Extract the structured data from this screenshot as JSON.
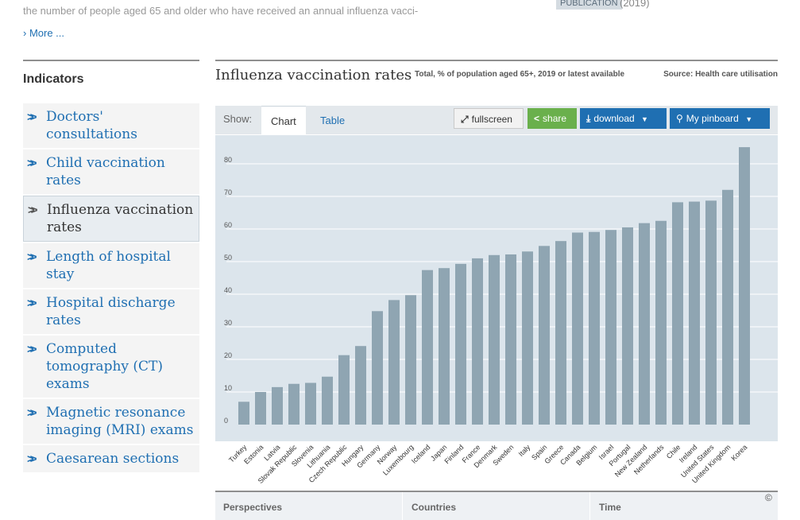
{
  "intro": {
    "text": "the number of people aged 65 and older who have received an annual influenza vacci-",
    "more_link": "› More ...",
    "badge": "PUBLICATION",
    "year": "(2019)"
  },
  "sidebar": {
    "title": "Indicators",
    "items": [
      {
        "label": "Doctors' consultations",
        "active": false
      },
      {
        "label": "Child vaccination rates",
        "active": false
      },
      {
        "label": "Influenza vaccination rates",
        "active": true
      },
      {
        "label": "Length of hospital stay",
        "active": false
      },
      {
        "label": "Hospital discharge rates",
        "active": false
      },
      {
        "label": "Computed tomography (CT) exams",
        "active": false
      },
      {
        "label": "Magnetic resonance imaging (MRI) exams",
        "active": false
      },
      {
        "label": "Caesarean sections",
        "active": false
      }
    ]
  },
  "main": {
    "title": "Influenza vaccination rates",
    "subtitle": "Total, % of population aged 65+, 2019 or latest available",
    "source": "Source: Health care utilisation"
  },
  "toolbar": {
    "show_label": "Show:",
    "tab_chart": "Chart",
    "tab_table": "Table",
    "fullscreen": "fullscreen",
    "share": "share",
    "download": "download",
    "pinboard": "My pinboard",
    "caret": "▼"
  },
  "icons": {
    "fullscreen": "expand-icon",
    "share": "share-icon",
    "download": "download-icon",
    "pinboard": "pin-icon",
    "indicator": "double-chevron-icon"
  },
  "colors": {
    "accent": "#1f6fb2",
    "share": "#6ab04c",
    "bar": "#8fa5b2",
    "chart_bg": "#dce5ec"
  },
  "bottom": {
    "perspectives": "Perspectives",
    "countries": "Countries",
    "time": "Time",
    "copyright": "©"
  },
  "chart_data": {
    "type": "bar",
    "title": "",
    "xlabel": "",
    "ylabel": "",
    "ylim": [
      0,
      90
    ],
    "yticks": [
      0,
      10,
      20,
      30,
      40,
      50,
      60,
      70,
      80
    ],
    "grid": true,
    "categories": [
      "Turkey",
      "Estonia",
      "Latvia",
      "Slovak Republic",
      "Slovenia",
      "Lithuania",
      "Czech Republic",
      "Hungary",
      "Germany",
      "Norway",
      "Luxembourg",
      "Iceland",
      "Japan",
      "Finland",
      "France",
      "Denmark",
      "Sweden",
      "Italy",
      "Spain",
      "Greece",
      "Canada",
      "Belgium",
      "Israel",
      "Portugal",
      "New Zealand",
      "Netherlands",
      "Chile",
      "Ireland",
      "United States",
      "United Kingdom",
      "Korea"
    ],
    "values": [
      7,
      10,
      11.5,
      12.5,
      12.8,
      14.7,
      21.3,
      24.1,
      34.8,
      38.2,
      39.7,
      47.4,
      48,
      49.3,
      51,
      52,
      52.2,
      53.1,
      54.8,
      56.3,
      58.9,
      59.1,
      59.7,
      60.5,
      61.8,
      62.5,
      68.2,
      68.4,
      68.7,
      72,
      85.1
    ]
  }
}
